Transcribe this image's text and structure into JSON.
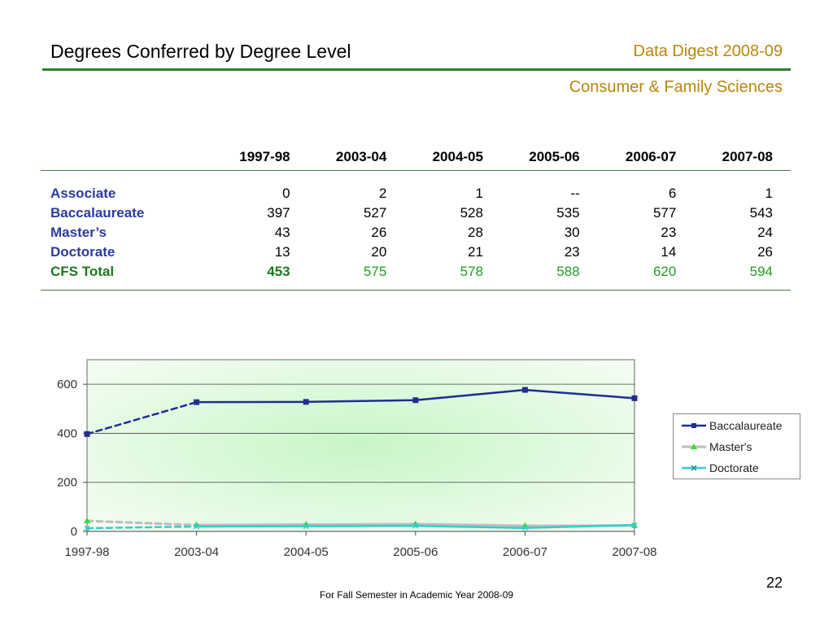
{
  "header": {
    "title": "Degrees Conferred by Degree Level",
    "digest": "Data Digest 2008-09",
    "department": "Consumer & Family Sciences"
  },
  "table": {
    "columns": [
      "1997-98",
      "2003-04",
      "2004-05",
      "2005-06",
      "2006-07",
      "2007-08"
    ],
    "rows": [
      {
        "label": "Associate",
        "values": [
          "0",
          "2",
          "1",
          "--",
          "6",
          "1"
        ]
      },
      {
        "label": "Baccalaureate",
        "values": [
          "397",
          "527",
          "528",
          "535",
          "577",
          "543"
        ]
      },
      {
        "label": "Master’s",
        "values": [
          "43",
          "26",
          "28",
          "30",
          "23",
          "24"
        ]
      },
      {
        "label": "Doctorate",
        "values": [
          "13",
          "20",
          "21",
          "23",
          "14",
          "26"
        ]
      }
    ],
    "total": {
      "label": "CFS Total",
      "values": [
        "453",
        "575",
        "578",
        "588",
        "620",
        "594"
      ]
    }
  },
  "chart_data": {
    "type": "line",
    "categories": [
      "1997-98",
      "2003-04",
      "2004-05",
      "2005-06",
      "2006-07",
      "2007-08"
    ],
    "series": [
      {
        "name": "Baccalaureate",
        "values": [
          397,
          527,
          528,
          535,
          577,
          543
        ],
        "color": "#1f2e8f",
        "marker": "square"
      },
      {
        "name": "Master's",
        "values": [
          43,
          26,
          28,
          30,
          23,
          24
        ],
        "color": "#bdbdbd",
        "marker": "triangle",
        "marker_color": "#33dd33"
      },
      {
        "name": "Doctorate",
        "values": [
          13,
          20,
          21,
          23,
          14,
          26
        ],
        "color": "#2ecfcf",
        "marker": "x",
        "marker_color": "#33cccc"
      }
    ],
    "first_segment_dashed": true,
    "y_ticks": [
      0,
      200,
      400,
      600
    ],
    "ylim": [
      0,
      700
    ],
    "grid": true,
    "legend_position": "right",
    "plot_background": "light green radial gradient"
  },
  "footer": {
    "note": "For Fall Semester in Academic Year 2008-09",
    "page_number": "22"
  }
}
